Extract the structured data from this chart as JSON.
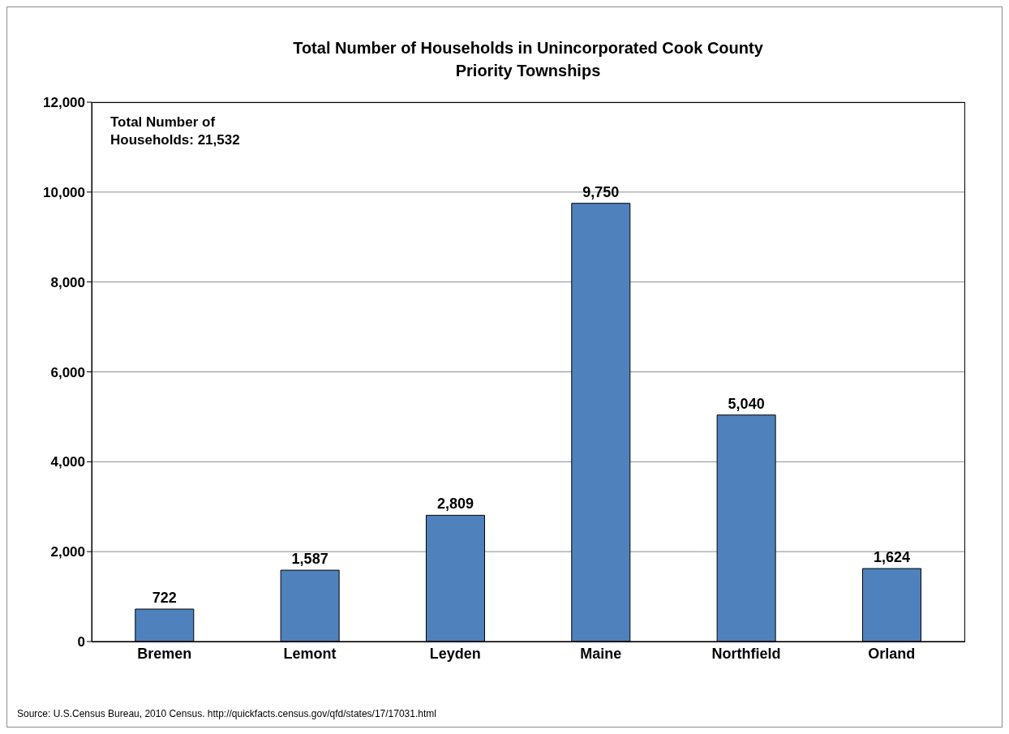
{
  "chart_data": {
    "type": "bar",
    "title": "Total Number of Households in Unincorporated Cook County Priority Townships",
    "categories": [
      "Bremen",
      "Lemont",
      "Leyden",
      "Maine",
      "Northfield",
      "Orland"
    ],
    "values": [
      722,
      1587,
      2809,
      9750,
      5040,
      1624
    ],
    "color": "#4f81bd",
    "value_labels": [
      "722",
      "1,587",
      "2,809",
      "9,750",
      "5,040",
      "1,624"
    ],
    "ylim": [
      0,
      12000
    ],
    "yticks": [
      0,
      {
        "value": 2000,
        "label": "2,000"
      },
      {
        "value": 4000,
        "label": "4,000"
      },
      {
        "value": 6000,
        "label": "6,000"
      },
      {
        "value": 8000,
        "label": "8,000"
      },
      {
        "value": 10000,
        "label": "10,000"
      },
      {
        "value": 12000,
        "label": "12,000"
      }
    ],
    "grid": "y",
    "annotations": [
      "Total Number of Households: 21,532",
      "Source: U.S.Census Bureau, 2010 Census. http://quickfacts.census.gov/qfd/states/17/17031.html"
    ]
  }
}
